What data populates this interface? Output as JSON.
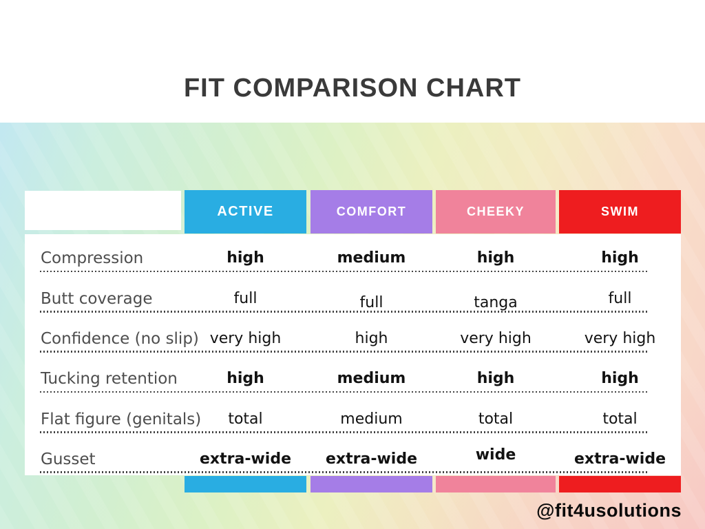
{
  "page": {
    "title": "FIT COMPARISON CHART",
    "brand_handle": "@fit4usolutions"
  },
  "chart_data": {
    "type": "table",
    "title": "FIT COMPARISON CHART",
    "row_header_column": "",
    "columns": [
      {
        "label": "ACTIVE",
        "color": "#29ade2"
      },
      {
        "label": "COMFORT",
        "color": "#a57de7"
      },
      {
        "label": "CHEEKY",
        "color": "#f0839b"
      },
      {
        "label": "SWIM",
        "color": "#ee1d1f"
      }
    ],
    "rows": [
      {
        "label": "Compression",
        "values": [
          "high",
          "medium",
          "high",
          "high"
        ],
        "emphasis": "bold"
      },
      {
        "label": "Butt coverage",
        "values": [
          "full",
          "full",
          "tanga",
          "full"
        ],
        "emphasis": "regular"
      },
      {
        "label": "Confidence (no slip)",
        "values": [
          "very high",
          "high",
          "very high",
          "very high"
        ],
        "emphasis": "regular"
      },
      {
        "label": "Tucking retention",
        "values": [
          "high",
          "medium",
          "high",
          "high"
        ],
        "emphasis": "bold"
      },
      {
        "label": "Flat figure (genitals)",
        "values": [
          "total",
          "medium",
          "total",
          "total"
        ],
        "emphasis": "regular"
      },
      {
        "label": "Gusset",
        "values": [
          "extra-wide",
          "extra-wide",
          "wide",
          "extra-wide"
        ],
        "emphasis": "bold"
      }
    ]
  },
  "colors": {
    "accent_active": "#29ade2",
    "accent_comfort": "#a57de7",
    "accent_cheeky": "#f0839b",
    "accent_swim": "#ee1d1f",
    "title_text": "#3a3a3a",
    "row_label_text": "#4d4d4d",
    "value_text": "#121212"
  }
}
